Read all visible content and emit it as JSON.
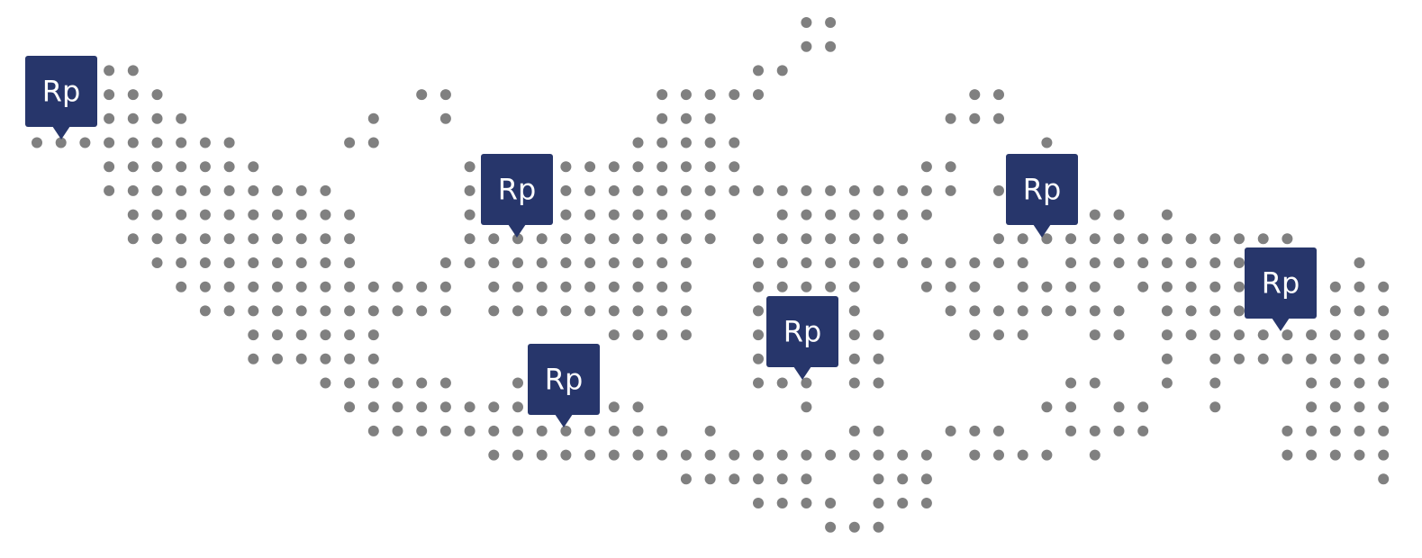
{
  "colors": {
    "background": "#ffffff",
    "dot": "#808080",
    "marker": "#27366b",
    "marker_text": "#ffffff"
  },
  "markers": [
    {
      "id": "marker-1",
      "label": "Rp"
    },
    {
      "id": "marker-2",
      "label": "Rp"
    },
    {
      "id": "marker-3",
      "label": "Rp"
    },
    {
      "id": "marker-4",
      "label": "Rp"
    },
    {
      "id": "marker-5",
      "label": "Rp"
    },
    {
      "id": "marker-6",
      "label": "Rp"
    }
  ]
}
